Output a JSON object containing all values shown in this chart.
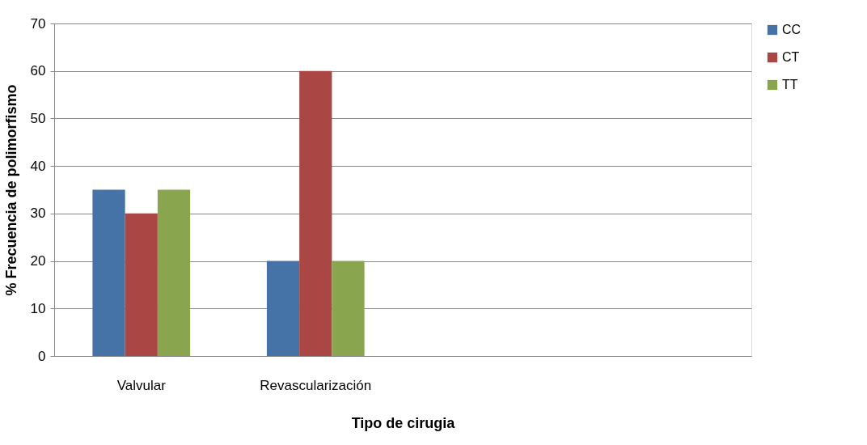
{
  "chart_data": {
    "type": "bar",
    "xlabel": "Tipo de cirugia",
    "ylabel": "% Frecuencia de polimorfismo",
    "categories": [
      "Valvular",
      "Revascularización",
      null,
      null
    ],
    "series": [
      {
        "name": "CC",
        "color": "#4572a7",
        "values": [
          35,
          20,
          null,
          null
        ]
      },
      {
        "name": "CT",
        "color": "#aa4643",
        "values": [
          30,
          60,
          null,
          null
        ]
      },
      {
        "name": "TT",
        "color": "#89a54e",
        "values": [
          35,
          20,
          null,
          null
        ]
      }
    ],
    "ylim": [
      0,
      70
    ],
    "yticks": [
      0,
      10,
      20,
      30,
      40,
      50,
      60,
      70
    ],
    "grid": "y",
    "legend": "right"
  }
}
